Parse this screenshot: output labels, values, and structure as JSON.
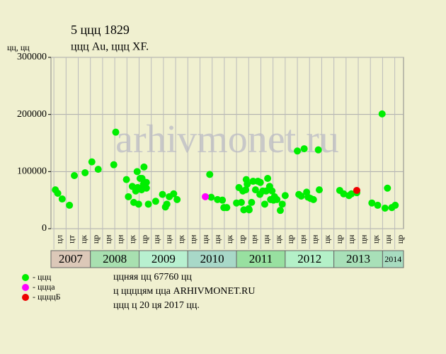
{
  "chart_data": {
    "type": "scatter",
    "title": "5 ццц 1829",
    "subtitle": "ццц Au, ццц XF.",
    "y_label": "цц, цц",
    "watermark": "arhivmonet.ru",
    "ylim": [
      0,
      300000
    ],
    "yticks": [
      0,
      100000,
      200000,
      300000
    ],
    "grid": true,
    "xlim": [
      2007.19,
      2014.43
    ],
    "years": [
      2007,
      2008,
      2009,
      2010,
      2011,
      2012,
      2013,
      2014
    ],
    "year_colors": [
      "#dcc8b8",
      "#a8e0b0",
      "#b8f0d0",
      "#a8d8c8",
      "#98e0a0",
      "#b4f0c8",
      "#a8e0b8",
      "#a8dcc0"
    ],
    "quarter_labels": [
      "цл",
      "цт",
      "цк",
      "цр",
      "цн",
      "цн",
      "цк",
      "цр",
      "цн",
      "цн",
      "цк",
      "цн",
      "цн",
      "цн",
      "цк",
      "цр",
      "цн",
      "цн",
      "цк",
      "цр",
      "цн",
      "цн",
      "цк",
      "цр",
      "цн",
      "цн",
      "цк",
      "цн",
      "цр"
    ],
    "series": [
      {
        "name": "- ццц",
        "color": "#00ee00",
        "x": [
          2007.28,
          2007.33,
          2007.42,
          2007.57,
          2007.67,
          2007.89,
          2008.03,
          2008.16,
          2008.48,
          2008.52,
          2008.74,
          2008.78,
          2008.86,
          2008.89,
          2008.93,
          2008.96,
          2008.97,
          2008.99,
          2009.02,
          2009.05,
          2009.06,
          2009.09,
          2009.1,
          2009.15,
          2009.15,
          2009.19,
          2009.34,
          2009.48,
          2009.54,
          2009.57,
          2009.62,
          2009.71,
          2009.78,
          2010.45,
          2010.48,
          2010.61,
          2010.71,
          2010.74,
          2010.8,
          2011.0,
          2011.05,
          2011.1,
          2011.13,
          2011.15,
          2011.19,
          2011.2,
          2011.22,
          2011.25,
          2011.26,
          2011.31,
          2011.34,
          2011.39,
          2011.44,
          2011.48,
          2011.49,
          2011.54,
          2011.58,
          2011.61,
          2011.64,
          2011.68,
          2011.7,
          2011.73,
          2011.76,
          2011.78,
          2011.83,
          2011.9,
          2011.94,
          2012.0,
          2012.25,
          2012.28,
          2012.33,
          2012.39,
          2012.44,
          2012.47,
          2012.52,
          2012.58,
          2012.68,
          2012.7,
          2013.12,
          2013.2,
          2013.31,
          2013.36,
          2013.47,
          2013.78,
          2013.9,
          2013.99,
          2014.05,
          2014.1,
          2014.19,
          2014.26
        ],
        "values": [
          68000,
          62000,
          52000,
          41000,
          93000,
          98000,
          117000,
          104000,
          112000,
          169000,
          86000,
          56000,
          74000,
          46000,
          66000,
          100000,
          72000,
          43000,
          88000,
          68000,
          88000,
          78000,
          108000,
          81000,
          71000,
          43000,
          48000,
          60000,
          38000,
          43000,
          56000,
          61000,
          51000,
          95000,
          55000,
          51000,
          50000,
          37000,
          37000,
          45000,
          72000,
          46000,
          66000,
          33000,
          68000,
          86000,
          78000,
          35000,
          33000,
          46000,
          83000,
          68000,
          83000,
          60000,
          81000,
          66000,
          43000,
          66000,
          88000,
          74000,
          51000,
          66000,
          50000,
          56000,
          51000,
          32000,
          43000,
          58000,
          136000,
          60000,
          57000,
          140000,
          64000,
          55000,
          53000,
          51000,
          138000,
          68000,
          67000,
          61000,
          58000,
          61000,
          63000,
          45000,
          41000,
          201000,
          36000,
          71000,
          37000,
          41000
        ]
      },
      {
        "name": "- ццца",
        "color": "#ff00ff",
        "x": [
          2010.36
        ],
        "values": [
          56000
        ]
      },
      {
        "name": "- ццццБ",
        "color": "#ee0000",
        "x": [
          2013.47
        ],
        "values": [
          67000
        ]
      }
    ],
    "notes": [
      "ццняя цц 67760 цц",
      "ц ццццям цца ARHIVMONET.RU",
      "ццц ц 20 ця 2017 цц."
    ]
  }
}
